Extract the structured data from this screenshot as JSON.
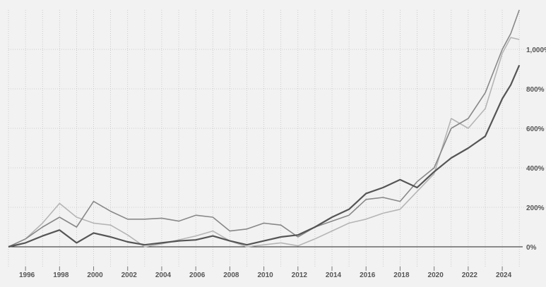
{
  "chart_data": {
    "type": "line",
    "title": "",
    "xlabel": "",
    "ylabel": "",
    "xlim": [
      1995.0,
      2025.2
    ],
    "ylim": [
      -100,
      1200
    ],
    "grid": true,
    "x_ticks": [
      1996,
      1998,
      2000,
      2002,
      2004,
      2006,
      2008,
      2010,
      2012,
      2014,
      2016,
      2018,
      2020,
      2022,
      2024
    ],
    "y_ticks": [
      0,
      200,
      400,
      600,
      800,
      1000
    ],
    "y_tick_labels": [
      "0%",
      "200%",
      "400%",
      "600%",
      "800%",
      "1,000%"
    ],
    "series": [
      {
        "color": "#555555",
        "x": [
          1995.0,
          1996.0,
          1997.0,
          1998.0,
          1999.0,
          2000.0,
          2001.0,
          2002.0,
          2003.0,
          2004.0,
          2005.0,
          2006.0,
          2007.0,
          2008.0,
          2009.0,
          2010.0,
          2011.0,
          2012.0,
          2013.0,
          2014.0,
          2015.0,
          2016.0,
          2017.0,
          2018.0,
          2019.0,
          2020.0,
          2021.0,
          2022.0,
          2023.0,
          2024.0,
          2024.5,
          2025.0
        ],
        "values": [
          0,
          20,
          55,
          85,
          20,
          70,
          50,
          25,
          10,
          20,
          30,
          35,
          55,
          30,
          10,
          30,
          50,
          60,
          100,
          150,
          190,
          270,
          300,
          340,
          300,
          380,
          450,
          500,
          560,
          750,
          820,
          920
        ]
      },
      {
        "color": "#888888",
        "x": [
          1995.0,
          1996.0,
          1997.0,
          1998.0,
          1999.0,
          2000.0,
          2001.0,
          2002.0,
          2003.0,
          2004.0,
          2005.0,
          2006.0,
          2007.0,
          2008.0,
          2009.0,
          2010.0,
          2011.0,
          2012.0,
          2013.0,
          2014.0,
          2015.0,
          2016.0,
          2017.0,
          2018.0,
          2019.0,
          2020.0,
          2021.0,
          2022.0,
          2023.0,
          2024.0,
          2024.5,
          2025.0
        ],
        "values": [
          0,
          40,
          100,
          150,
          100,
          230,
          180,
          140,
          140,
          145,
          130,
          160,
          150,
          80,
          90,
          120,
          110,
          50,
          100,
          130,
          160,
          240,
          250,
          230,
          330,
          400,
          600,
          650,
          780,
          1000,
          1080,
          1200
        ]
      },
      {
        "color": "#b5b5b5",
        "x": [
          1995.0,
          1996.0,
          1997.0,
          1998.0,
          1999.0,
          2000.0,
          2001.0,
          2002.0,
          2003.0,
          2004.0,
          2005.0,
          2006.0,
          2007.0,
          2008.0,
          2009.0,
          2010.0,
          2011.0,
          2012.0,
          2013.0,
          2014.0,
          2015.0,
          2016.0,
          2017.0,
          2018.0,
          2019.0,
          2020.0,
          2021.0,
          2022.0,
          2023.0,
          2024.0,
          2024.5,
          2025.0
        ],
        "values": [
          0,
          40,
          120,
          220,
          150,
          120,
          110,
          60,
          0,
          15,
          35,
          55,
          80,
          30,
          0,
          10,
          20,
          5,
          40,
          80,
          120,
          140,
          170,
          190,
          280,
          370,
          650,
          600,
          700,
          980,
          1060,
          1050
        ]
      }
    ]
  }
}
